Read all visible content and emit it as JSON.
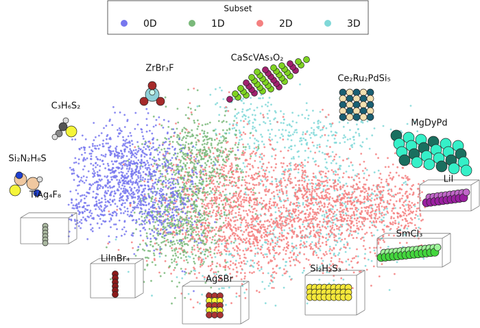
{
  "legend": {
    "title": "Subset",
    "items": [
      {
        "label": "0D",
        "color": "#7777ee"
      },
      {
        "label": "1D",
        "color": "#7ab97a"
      },
      {
        "label": "2D",
        "color": "#f48080"
      },
      {
        "label": "3D",
        "color": "#80d8d8"
      }
    ]
  },
  "structures": [
    {
      "label": "CaScVAs₃O₂"
    },
    {
      "label": "ZrBr₃F"
    },
    {
      "label": "Ce₂Ru₂PdSi₅"
    },
    {
      "label": "C₃H₆S₂"
    },
    {
      "label": "MgDyPd"
    },
    {
      "label": "Si₂N₂H₈S"
    },
    {
      "label": "LiI"
    },
    {
      "label": "TiAg₄F₈"
    },
    {
      "label": "SmCl₃"
    },
    {
      "label": "LiInBr₄"
    },
    {
      "label": "AgSBr"
    },
    {
      "label": "Si₂H₂S₃"
    }
  ]
}
